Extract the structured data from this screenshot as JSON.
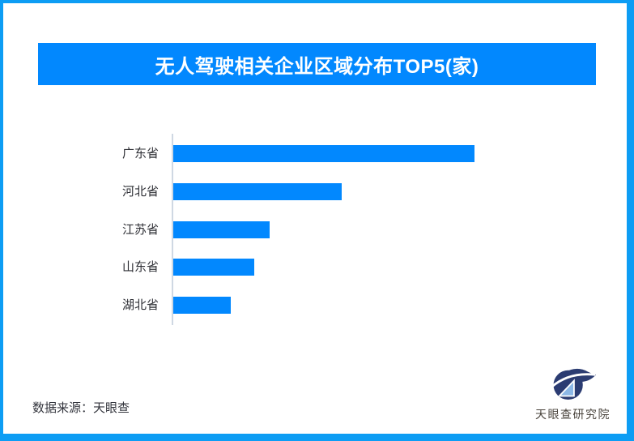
{
  "frame": {
    "border_color": "#0d9df4"
  },
  "header": {
    "title": "无人驾驶相关企业区域分布TOP5(家)",
    "background": "#0288fe",
    "text_color": "#ffffff"
  },
  "chart_data": {
    "type": "bar",
    "orientation": "horizontal",
    "title": "无人驾驶相关企业区域分布TOP5(家)",
    "categories": [
      "广东省",
      "河北省",
      "江苏省",
      "山东省",
      "湖北省"
    ],
    "values": [
      100,
      56,
      32,
      27,
      19
    ],
    "values_unit": "relative bar length, % of longest bar (no numeric data labels shown in chart)",
    "xlabel": "",
    "ylabel": "",
    "bar_color": "#0288fe",
    "axis_line_color": "#cfd8e3",
    "grid": false,
    "legend": false
  },
  "footer": {
    "source_label": "数据来源：天眼查"
  },
  "logo": {
    "text": "天眼查研究院",
    "mark_dark_color": "#2b3c72",
    "mark_light_color": "#8cb8e6"
  }
}
